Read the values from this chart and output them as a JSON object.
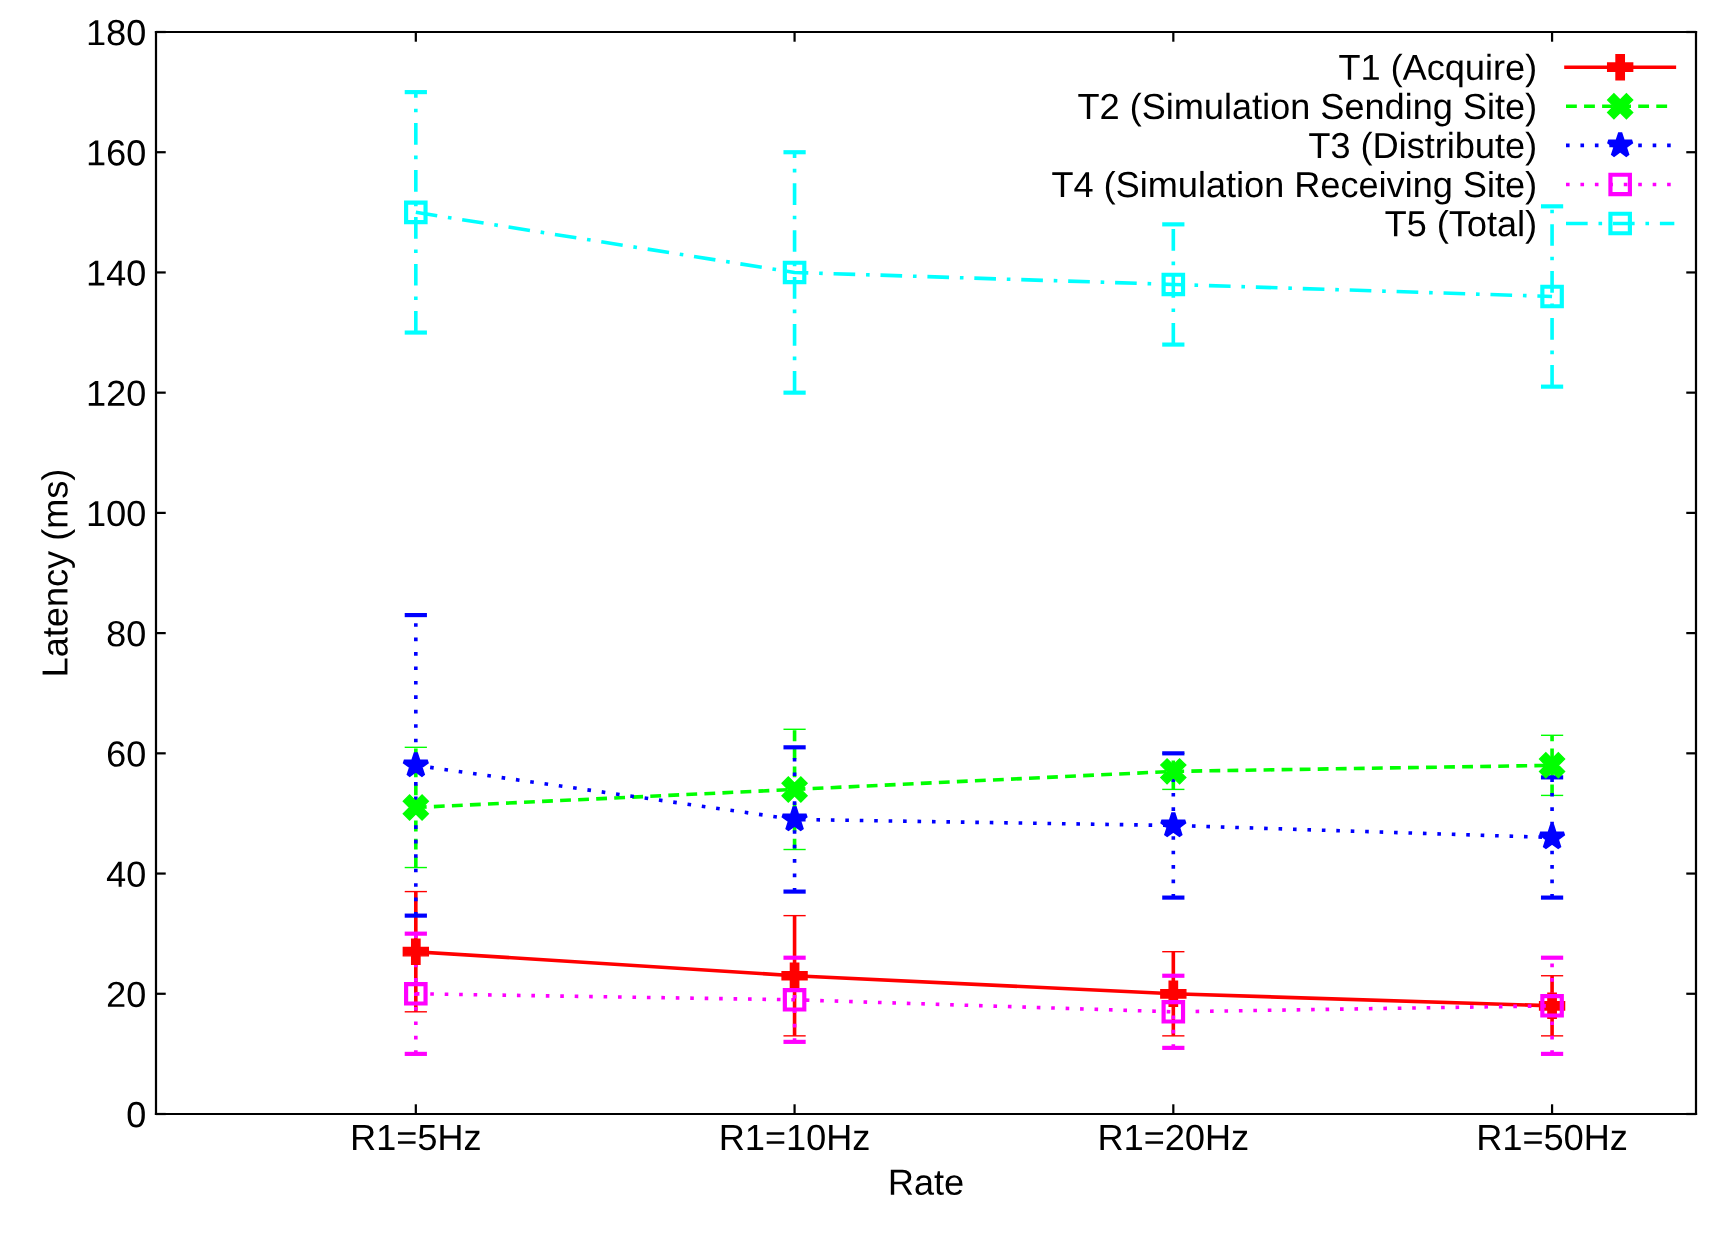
{
  "chart_data": {
    "type": "line",
    "xlabel": "Rate",
    "ylabel": "Latency (ms)",
    "categories": [
      "R1=5Hz",
      "R1=10Hz",
      "R1=20Hz",
      "R1=50Hz"
    ],
    "ylim": [
      0,
      180
    ],
    "yticks": [
      0,
      20,
      40,
      60,
      80,
      100,
      120,
      140,
      160,
      180
    ],
    "grid": false,
    "legend": "top right",
    "series": [
      {
        "name": "T1 (Acquire)",
        "color": "#ff0000",
        "line_style": "solid",
        "marker": "plus",
        "values": [
          27,
          23,
          20,
          18
        ],
        "errors": [
          [
            17,
            37
          ],
          [
            13,
            33
          ],
          [
            13,
            27
          ],
          [
            13,
            23
          ]
        ]
      },
      {
        "name": "T2 (Simulation Sending Site)",
        "color": "#00ff00",
        "line_style": "dashed",
        "marker": "cross",
        "values": [
          51,
          54,
          57,
          58
        ],
        "errors": [
          [
            41,
            61
          ],
          [
            44,
            64
          ],
          [
            54,
            60
          ],
          [
            53,
            63
          ]
        ]
      },
      {
        "name": "T3 (Distribute)",
        "color": "#0000ff",
        "line_style": "dotted",
        "marker": "star",
        "values": [
          58,
          49,
          48,
          46
        ],
        "errors": [
          [
            33,
            83
          ],
          [
            37,
            61
          ],
          [
            36,
            60
          ],
          [
            36,
            56
          ]
        ]
      },
      {
        "name": "T4 (Simulation Receiving Site)",
        "color": "#ff00ff",
        "line_style": "dotted",
        "marker": "square",
        "values": [
          20,
          19,
          17,
          18
        ],
        "errors": [
          [
            10,
            30
          ],
          [
            12,
            26
          ],
          [
            11,
            23
          ],
          [
            10,
            26
          ]
        ]
      },
      {
        "name": "T5 (Total)",
        "color": "#00ffff",
        "line_style": "dashdot",
        "marker": "square",
        "values": [
          150,
          140,
          138,
          136
        ],
        "errors": [
          [
            130,
            170
          ],
          [
            120,
            160
          ],
          [
            128,
            148
          ],
          [
            121,
            151
          ]
        ]
      }
    ]
  }
}
